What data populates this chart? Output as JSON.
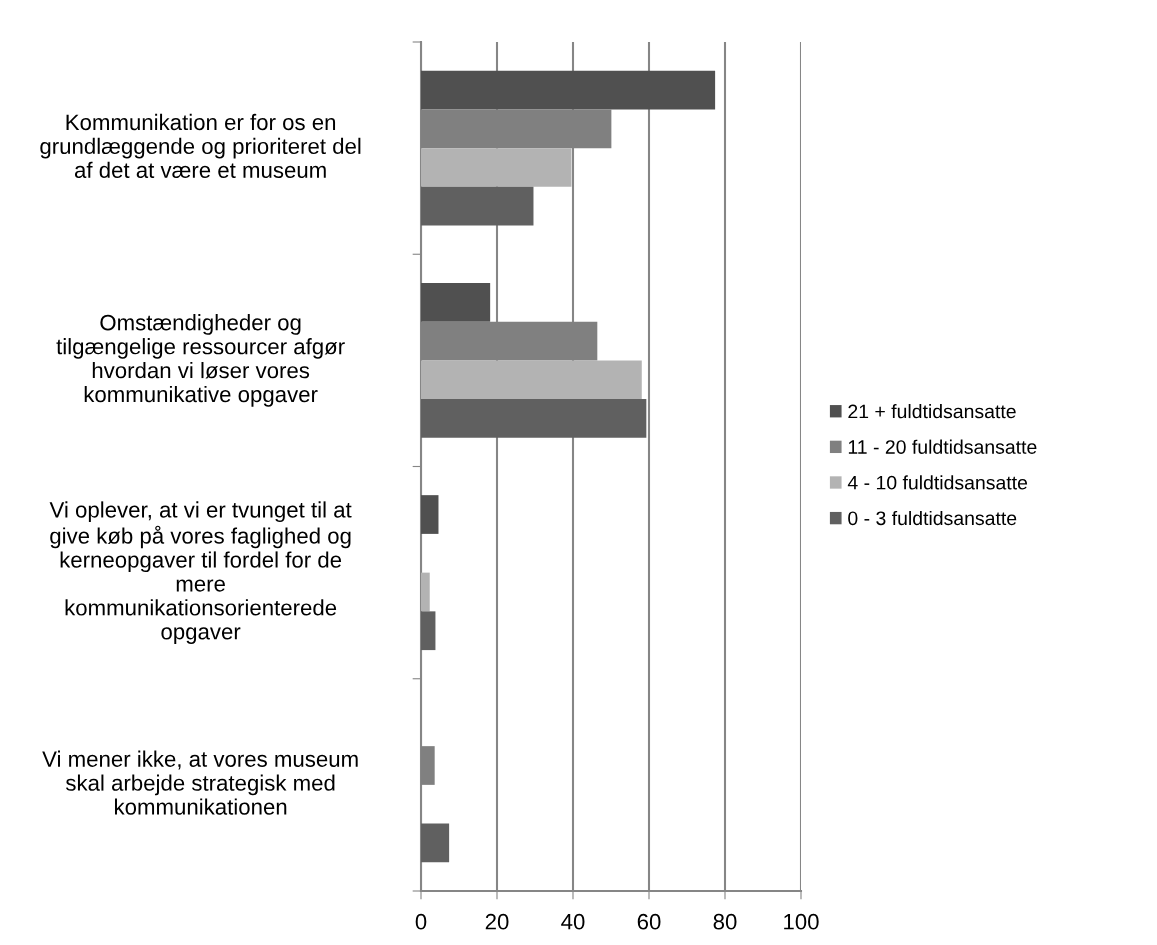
{
  "chart_data": {
    "type": "bar",
    "orientation": "horizontal",
    "categories": [
      "Kommunikation er for os en\ngrundlæggende og prioriteret del\naf det at være et museum",
      "Omstændigheder og\ntilgængelige ressourcer afgør\nhvordan vi løser vores\nkommunikative opgaver",
      "Vi oplever, at vi er tvunget til at\ngive køb på vores faglighed og\nkerneopgaver til fordel for de\nmere\nkommunikationsorienterede\nopgaver",
      "Vi mener ikke, at vores museum\nskal arbejde strategisk med\nkommunikationen"
    ],
    "series": [
      {
        "name": "21 + fuldtidsansatte",
        "color": "#505050",
        "values": [
          77.4,
          18.2,
          4.6,
          0
        ]
      },
      {
        "name": "11 - 20 fuldtidsansatte",
        "color": "#808080",
        "values": [
          50.1,
          46.4,
          0,
          3.6
        ]
      },
      {
        "name": "4 - 10 fuldtidsansatte",
        "color": "#b3b3b3",
        "values": [
          39.6,
          58.1,
          2.3,
          0
        ]
      },
      {
        "name": "0 - 3 fuldtidsansatte",
        "color": "#606060",
        "values": [
          29.6,
          59.3,
          3.8,
          7.4
        ]
      }
    ],
    "xlim": [
      0,
      100
    ],
    "xticks": [
      0,
      20,
      40,
      60,
      80,
      100
    ],
    "grid": "x",
    "legend": "right"
  }
}
